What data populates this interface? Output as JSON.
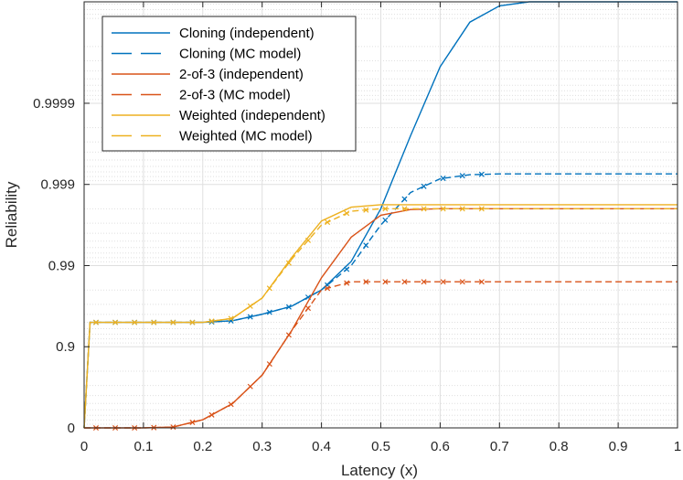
{
  "chart_data": {
    "type": "line",
    "title": "",
    "xlabel": "Latency (x)",
    "ylabel": "Reliability",
    "xlim": [
      0,
      1
    ],
    "y_scale": "nines (log of 1 - reliability)",
    "ylim_nines": [
      0,
      5.25
    ],
    "grid": true,
    "legend_position": "top-left",
    "x_ticks": [
      0,
      0.1,
      0.2,
      0.3,
      0.4,
      0.5,
      0.6,
      0.7,
      0.8,
      0.9,
      1
    ],
    "x_tick_labels": [
      "0",
      "0.1",
      "0.2",
      "0.3",
      "0.4",
      "0.5",
      "0.6",
      "0.7",
      "0.8",
      "0.9",
      "1"
    ],
    "y_ticks_nines": [
      0,
      1,
      2,
      3,
      4
    ],
    "y_tick_labels": [
      "0",
      "0.9",
      "0.99",
      "0.999",
      "0.9999"
    ],
    "colors": {
      "cloning": "#0072BD",
      "two_of_three": "#D95319",
      "weighted": "#EDB120",
      "axis": "#262626",
      "grid": "#DFDFDF"
    },
    "series": [
      {
        "name": "Cloning (independent)",
        "group": "cloning",
        "style": "solid",
        "markers": false,
        "x": [
          0,
          0.01,
          0.1,
          0.2,
          0.25,
          0.3,
          0.35,
          0.4,
          0.45,
          0.5,
          0.55,
          0.6,
          0.65,
          0.7,
          0.75,
          0.8,
          1
        ],
        "y": [
          0,
          1.3,
          1.3,
          1.3,
          1.32,
          1.4,
          1.5,
          1.7,
          2.05,
          2.7,
          3.6,
          4.45,
          5.0,
          5.2,
          5.25,
          5.25,
          5.25
        ]
      },
      {
        "name": "Cloning (MC model)",
        "group": "cloning",
        "style": "dashed",
        "markers": true,
        "x": [
          0,
          0.01,
          0.1,
          0.2,
          0.25,
          0.3,
          0.35,
          0.4,
          0.45,
          0.5,
          0.55,
          0.6,
          0.65,
          0.7,
          0.8,
          1
        ],
        "y": [
          0,
          1.3,
          1.3,
          1.3,
          1.32,
          1.4,
          1.5,
          1.7,
          2.0,
          2.5,
          2.9,
          3.07,
          3.12,
          3.13,
          3.13,
          3.13
        ]
      },
      {
        "name": "2-of-3 (independent)",
        "group": "two_of_three",
        "style": "solid",
        "markers": false,
        "x": [
          0,
          0.1,
          0.15,
          0.2,
          0.25,
          0.3,
          0.35,
          0.4,
          0.45,
          0.5,
          0.55,
          0.6,
          1
        ],
        "y": [
          0,
          0,
          0.01,
          0.1,
          0.3,
          0.65,
          1.2,
          1.85,
          2.35,
          2.62,
          2.69,
          2.7,
          2.7
        ]
      },
      {
        "name": "2-of-3 (MC model)",
        "group": "two_of_three",
        "style": "dashed",
        "markers": true,
        "x": [
          0,
          0.1,
          0.15,
          0.2,
          0.25,
          0.3,
          0.35,
          0.4,
          0.45,
          0.5,
          1
        ],
        "y": [
          0,
          0,
          0.01,
          0.1,
          0.3,
          0.65,
          1.2,
          1.7,
          1.8,
          1.8,
          1.8
        ]
      },
      {
        "name": "Weighted (independent)",
        "group": "weighted",
        "style": "solid",
        "markers": false,
        "x": [
          0,
          0.01,
          0.1,
          0.2,
          0.25,
          0.3,
          0.35,
          0.4,
          0.45,
          0.5,
          0.55,
          1
        ],
        "y": [
          0,
          1.3,
          1.3,
          1.3,
          1.35,
          1.6,
          2.1,
          2.55,
          2.72,
          2.75,
          2.75,
          2.75
        ]
      },
      {
        "name": "Weighted (MC model)",
        "group": "weighted",
        "style": "dashed",
        "markers": true,
        "x": [
          0,
          0.01,
          0.1,
          0.2,
          0.25,
          0.3,
          0.35,
          0.4,
          0.45,
          0.5,
          1
        ],
        "y": [
          0,
          1.3,
          1.3,
          1.3,
          1.35,
          1.6,
          2.08,
          2.5,
          2.67,
          2.7,
          2.7
        ]
      }
    ]
  }
}
